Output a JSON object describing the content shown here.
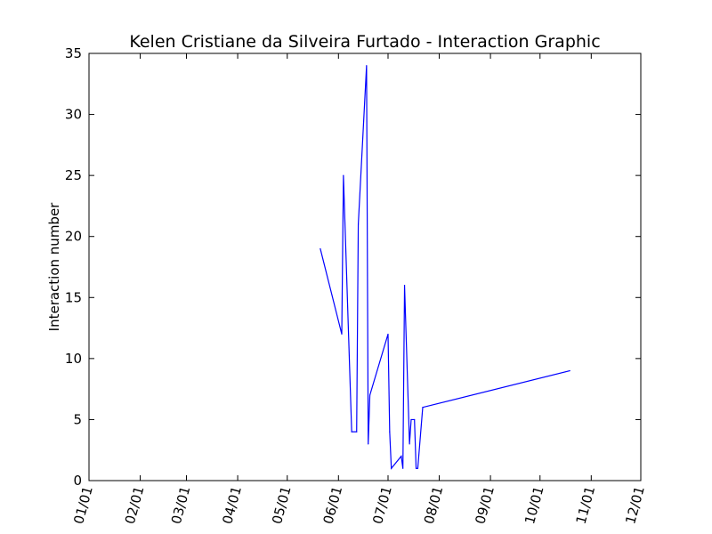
{
  "chart_data": {
    "type": "line",
    "title": "Kelen Cristiane da Silveira Furtado - Interaction Graphic",
    "xlabel": "",
    "ylabel": "Interaction number",
    "ylim": [
      0,
      35
    ],
    "xlim": [
      "01/01",
      "12/01"
    ],
    "y_ticks": [
      0,
      5,
      10,
      15,
      20,
      25,
      30,
      35
    ],
    "x_ticks": [
      "01/01",
      "02/01",
      "03/01",
      "04/01",
      "05/01",
      "06/01",
      "07/01",
      "08/01",
      "09/01",
      "10/01",
      "11/01",
      "12/01"
    ],
    "grid": false,
    "legend": "none",
    "series": [
      {
        "color": "#0000ff",
        "points": [
          {
            "x": "05/21",
            "y": 19
          },
          {
            "x": "06/03",
            "y": 12
          },
          {
            "x": "06/04",
            "y": 25
          },
          {
            "x": "06/09",
            "y": 4
          },
          {
            "x": "06/12",
            "y": 4
          },
          {
            "x": "06/13",
            "y": 21
          },
          {
            "x": "06/18",
            "y": 34
          },
          {
            "x": "06/19",
            "y": 3
          },
          {
            "x": "06/20",
            "y": 7
          },
          {
            "x": "07/01",
            "y": 12
          },
          {
            "x": "07/02",
            "y": 4
          },
          {
            "x": "07/03",
            "y": 1
          },
          {
            "x": "07/09",
            "y": 2
          },
          {
            "x": "07/10",
            "y": 1
          },
          {
            "x": "07/11",
            "y": 16
          },
          {
            "x": "07/14",
            "y": 3
          },
          {
            "x": "07/15",
            "y": 5
          },
          {
            "x": "07/17",
            "y": 5
          },
          {
            "x": "07/18",
            "y": 1
          },
          {
            "x": "07/19",
            "y": 1
          },
          {
            "x": "07/22",
            "y": 6
          },
          {
            "x": "10/19",
            "y": 9
          }
        ]
      }
    ]
  }
}
